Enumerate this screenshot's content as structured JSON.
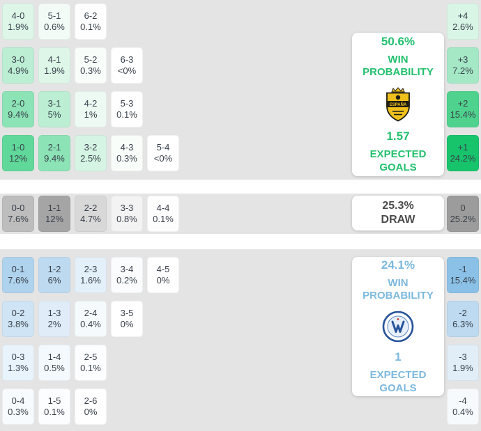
{
  "colors": {
    "home_accent": "#22c06e",
    "away_accent": "#7cb9dd",
    "draw_accent": "#4a4a4a",
    "section_bg": "#e4e4e4",
    "cell_text": "#39414b",
    "panel_bg": "#ffffff"
  },
  "home_panel": {
    "win_pct": "50.6%",
    "win_label": "WIN PROBABILITY",
    "crest_text": "ESPAÑA",
    "expected": "1.57",
    "expected_label": "EXPECTED GOALS"
  },
  "draw_panel": {
    "pct": "25.3%",
    "label": "DRAW"
  },
  "away_panel": {
    "win_pct": "24.1%",
    "win_label": "WIN PROBABILITY",
    "expected": "1",
    "expected_label": "EXPECTED GOALS"
  },
  "sections": {
    "home": {
      "rows": [
        [
          {
            "score": "4-0",
            "pct": "1.9%",
            "bg": "#ddf6e8"
          },
          {
            "score": "5-1",
            "pct": "0.6%",
            "bg": "#f3fbf7"
          },
          {
            "score": "6-2",
            "pct": "0.1%",
            "bg": "#fdfefd"
          }
        ],
        [
          {
            "score": "3-0",
            "pct": "4.9%",
            "bg": "#bceed4"
          },
          {
            "score": "4-1",
            "pct": "1.9%",
            "bg": "#ddf6e8"
          },
          {
            "score": "5-2",
            "pct": "0.3%",
            "bg": "#f8fdfa"
          },
          {
            "score": "6-3",
            "pct": "<0%",
            "bg": "#ffffff"
          }
        ],
        [
          {
            "score": "2-0",
            "pct": "9.4%",
            "bg": "#8ce3b6"
          },
          {
            "score": "3-1",
            "pct": "5%",
            "bg": "#bbeed3"
          },
          {
            "score": "4-2",
            "pct": "1%",
            "bg": "#edfaf3"
          },
          {
            "score": "5-3",
            "pct": "0.1%",
            "bg": "#fdfefd"
          }
        ],
        [
          {
            "score": "1-0",
            "pct": "12%",
            "bg": "#60d89a"
          },
          {
            "score": "2-1",
            "pct": "9.4%",
            "bg": "#8ce3b6"
          },
          {
            "score": "3-2",
            "pct": "2.5%",
            "bg": "#d5f4e3"
          },
          {
            "score": "4-3",
            "pct": "0.3%",
            "bg": "#f8fdfa"
          },
          {
            "score": "5-4",
            "pct": "<0%",
            "bg": "#ffffff"
          }
        ]
      ],
      "diff": [
        {
          "diff": "+4",
          "pct": "2.6%",
          "bg": "#d8f5e5"
        },
        {
          "diff": "+3",
          "pct": "7.2%",
          "bg": "#a5e8c6"
        },
        {
          "diff": "+2",
          "pct": "15.4%",
          "bg": "#4fd28d"
        },
        {
          "diff": "+1",
          "pct": "24.2%",
          "bg": "#17c46c"
        }
      ]
    },
    "draw": {
      "rows": [
        [
          {
            "score": "0-0",
            "pct": "7.6%",
            "bg": "#bdbdbd"
          },
          {
            "score": "1-1",
            "pct": "12%",
            "bg": "#a5a5a5"
          },
          {
            "score": "2-2",
            "pct": "4.7%",
            "bg": "#d8d8d8"
          },
          {
            "score": "3-3",
            "pct": "0.8%",
            "bg": "#f3f3f3"
          },
          {
            "score": "4-4",
            "pct": "0.1%",
            "bg": "#fdfdfd"
          }
        ]
      ],
      "diff": [
        {
          "diff": "0",
          "pct": "25.2%",
          "bg": "#9c9c9c"
        }
      ]
    },
    "away": {
      "rows": [
        [
          {
            "score": "0-1",
            "pct": "7.6%",
            "bg": "#b0d3ed"
          },
          {
            "score": "1-2",
            "pct": "6%",
            "bg": "#bedaf0"
          },
          {
            "score": "2-3",
            "pct": "1.6%",
            "bg": "#e4f0f9"
          },
          {
            "score": "3-4",
            "pct": "0.2%",
            "bg": "#fafcfe"
          },
          {
            "score": "4-5",
            "pct": "0%",
            "bg": "#ffffff"
          }
        ],
        [
          {
            "score": "0-2",
            "pct": "3.8%",
            "bg": "#cfe4f4"
          },
          {
            "score": "1-3",
            "pct": "2%",
            "bg": "#e0edf8"
          },
          {
            "score": "2-4",
            "pct": "0.4%",
            "bg": "#f5fafd"
          },
          {
            "score": "3-5",
            "pct": "0%",
            "bg": "#ffffff"
          }
        ],
        [
          {
            "score": "0-3",
            "pct": "1.3%",
            "bg": "#e9f3fb"
          },
          {
            "score": "1-4",
            "pct": "0.5%",
            "bg": "#f4f9fd"
          },
          {
            "score": "2-5",
            "pct": "0.1%",
            "bg": "#fcfdfe"
          }
        ],
        [
          {
            "score": "0-4",
            "pct": "0.3%",
            "bg": "#f7fbfd"
          },
          {
            "score": "1-5",
            "pct": "0.1%",
            "bg": "#fcfdfe"
          },
          {
            "score": "2-6",
            "pct": "0%",
            "bg": "#ffffff"
          }
        ]
      ],
      "diff": [
        {
          "diff": "-1",
          "pct": "15.4%",
          "bg": "#8cc1e7"
        },
        {
          "diff": "-2",
          "pct": "6.3%",
          "bg": "#bddaf0"
        },
        {
          "diff": "-3",
          "pct": "1.9%",
          "bg": "#e1eef8"
        },
        {
          "diff": "-4",
          "pct": "0.4%",
          "bg": "#f6fafd"
        }
      ]
    }
  },
  "chart_data": {
    "type": "heatmap",
    "home_win_probability_pct": 50.6,
    "draw_probability_pct": 25.3,
    "away_win_probability_pct": 24.1,
    "home_expected_goals": 1.57,
    "away_expected_goals": 1,
    "correct_scores": [
      {
        "score": "4-0",
        "pct": 1.9
      },
      {
        "score": "5-1",
        "pct": 0.6
      },
      {
        "score": "6-2",
        "pct": 0.1
      },
      {
        "score": "3-0",
        "pct": 4.9
      },
      {
        "score": "4-1",
        "pct": 1.9
      },
      {
        "score": "5-2",
        "pct": 0.3
      },
      {
        "score": "6-3",
        "pct": "<0"
      },
      {
        "score": "2-0",
        "pct": 9.4
      },
      {
        "score": "3-1",
        "pct": 5
      },
      {
        "score": "4-2",
        "pct": 1
      },
      {
        "score": "5-3",
        "pct": 0.1
      },
      {
        "score": "1-0",
        "pct": 12
      },
      {
        "score": "2-1",
        "pct": 9.4
      },
      {
        "score": "3-2",
        "pct": 2.5
      },
      {
        "score": "4-3",
        "pct": 0.3
      },
      {
        "score": "5-4",
        "pct": "<0"
      },
      {
        "score": "0-0",
        "pct": 7.6
      },
      {
        "score": "1-1",
        "pct": 12
      },
      {
        "score": "2-2",
        "pct": 4.7
      },
      {
        "score": "3-3",
        "pct": 0.8
      },
      {
        "score": "4-4",
        "pct": 0.1
      },
      {
        "score": "0-1",
        "pct": 7.6
      },
      {
        "score": "1-2",
        "pct": 6
      },
      {
        "score": "2-3",
        "pct": 1.6
      },
      {
        "score": "3-4",
        "pct": 0.2
      },
      {
        "score": "4-5",
        "pct": 0
      },
      {
        "score": "0-2",
        "pct": 3.8
      },
      {
        "score": "1-3",
        "pct": 2
      },
      {
        "score": "2-4",
        "pct": 0.4
      },
      {
        "score": "3-5",
        "pct": 0
      },
      {
        "score": "0-3",
        "pct": 1.3
      },
      {
        "score": "1-4",
        "pct": 0.5
      },
      {
        "score": "2-5",
        "pct": 0.1
      },
      {
        "score": "0-4",
        "pct": 0.3
      },
      {
        "score": "1-5",
        "pct": 0.1
      },
      {
        "score": "2-6",
        "pct": 0
      }
    ],
    "goal_difference": [
      {
        "diff": "+4",
        "pct": 2.6
      },
      {
        "diff": "+3",
        "pct": 7.2
      },
      {
        "diff": "+2",
        "pct": 15.4
      },
      {
        "diff": "+1",
        "pct": 24.2
      },
      {
        "diff": "0",
        "pct": 25.2
      },
      {
        "diff": "-1",
        "pct": 15.4
      },
      {
        "diff": "-2",
        "pct": 6.3
      },
      {
        "diff": "-3",
        "pct": 1.9
      },
      {
        "diff": "-4",
        "pct": 0.4
      }
    ]
  }
}
